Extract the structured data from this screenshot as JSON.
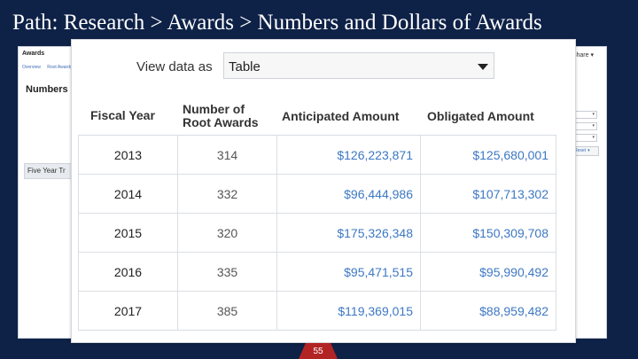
{
  "slide": {
    "title": "Path: Research > Awards > Numbers and Dollars of Awards",
    "page_number": "55",
    "accent_color": "#b22424",
    "background_color": "#0e2147"
  },
  "background_screenshot": {
    "app_title": "Awards",
    "nav": [
      "Overview",
      "Root Awards"
    ],
    "heading": "Numbers",
    "trend_button": "Five Year Tr",
    "share_label": "Share",
    "filters": [
      "",
      "",
      ""
    ],
    "action_button": "Reset"
  },
  "view_selector": {
    "label": "View data as",
    "value": "Table"
  },
  "table": {
    "headers": {
      "fiscal_year": "Fiscal Year",
      "root_awards_line1": "Number of",
      "root_awards_line2": "Root Awards",
      "anticipated": "Anticipated Amount",
      "obligated": "Obligated Amount"
    },
    "rows": [
      {
        "year": "2013",
        "root_awards": "314",
        "anticipated": "$126,223,871",
        "obligated": "$125,680,001"
      },
      {
        "year": "2014",
        "root_awards": "332",
        "anticipated": "$96,444,986",
        "obligated": "$107,713,302"
      },
      {
        "year": "2015",
        "root_awards": "320",
        "anticipated": "$175,326,348",
        "obligated": "$150,309,708"
      },
      {
        "year": "2016",
        "root_awards": "335",
        "anticipated": "$95,471,515",
        "obligated": "$95,990,492"
      },
      {
        "year": "2017",
        "root_awards": "385",
        "anticipated": "$119,369,015",
        "obligated": "$88,959,482"
      }
    ]
  }
}
